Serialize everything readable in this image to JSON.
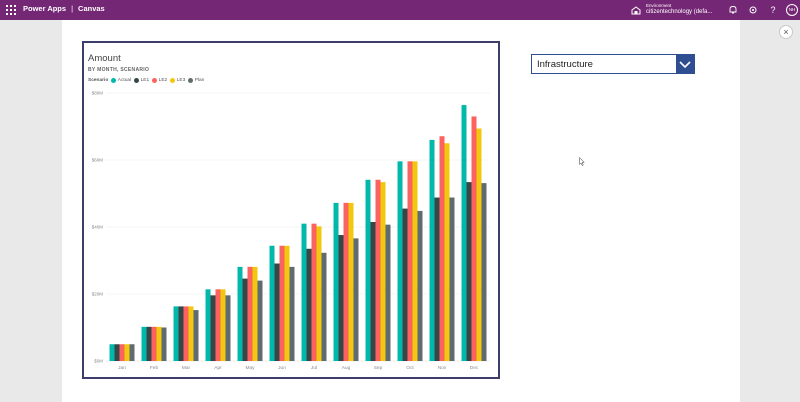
{
  "header": {
    "app_name": "Power Apps",
    "separator": "|",
    "app_type": "Canvas",
    "environment_label": "Environment",
    "environment_name": "citizentechnology (defa...",
    "user_initials": "NH",
    "icons": [
      "apps-waffle-icon",
      "environment-icon",
      "bell-icon",
      "gear-icon",
      "help-icon"
    ]
  },
  "close_label": "×",
  "dropdown": {
    "selected": "Infrastructure"
  },
  "chart_data": {
    "type": "bar",
    "title": "Amount",
    "subtitle": "BY MONTH, SCENARIO",
    "legend_title": "Scenario",
    "legend_position": "top-left",
    "categories": [
      "Jan",
      "Feb",
      "Mar",
      "Apr",
      "May",
      "Jun",
      "Jul",
      "Aug",
      "Sep",
      "Oct",
      "Nov",
      "Dec"
    ],
    "ytick_labels": [
      "$0M",
      "$20M",
      "$40M",
      "$60M",
      "$80M"
    ],
    "yticks": [
      0,
      20,
      40,
      60,
      80
    ],
    "ylim": [
      0,
      80
    ],
    "grid": true,
    "series": [
      {
        "name": "Actual",
        "color": "#01b8aa",
        "values": [
          5,
          10.2,
          16.3,
          21.4,
          28.1,
          34.4,
          41,
          47.2,
          54.1,
          59.6,
          66,
          76.4
        ]
      },
      {
        "name": "LE1",
        "color": "#374649",
        "values": [
          5,
          10.2,
          16.3,
          19.6,
          24.6,
          29.1,
          33.5,
          37.6,
          41.5,
          45.5,
          48.8,
          53.4
        ]
      },
      {
        "name": "LE2",
        "color": "#fd625e",
        "values": [
          5,
          10.2,
          16.3,
          21.4,
          28.1,
          34.4,
          41,
          47.2,
          54.1,
          59.6,
          67.1,
          73
        ]
      },
      {
        "name": "LE3",
        "color": "#f2c80f",
        "values": [
          5,
          10.2,
          16.3,
          21.4,
          28.1,
          34.4,
          40.2,
          47.2,
          53.4,
          59.6,
          65,
          69.4
        ]
      },
      {
        "name": "Plan",
        "color": "#5f6b6d",
        "values": [
          5,
          10,
          15.2,
          19.6,
          24,
          28.1,
          32.3,
          36.6,
          40.7,
          44.8,
          48.8,
          53.1
        ]
      }
    ]
  }
}
